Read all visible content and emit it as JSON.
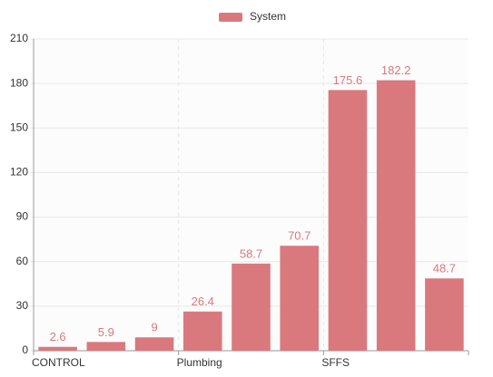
{
  "chart_data": {
    "type": "bar",
    "legend": "System",
    "categories": [
      "CONTROL",
      null,
      null,
      "Plumbing",
      null,
      null,
      "SFFS",
      null,
      null
    ],
    "series": [
      {
        "name": "System",
        "color": "#d9797e",
        "values": [
          2.6,
          5.9,
          9,
          26.4,
          58.7,
          70.7,
          175.6,
          182.2,
          48.7
        ]
      }
    ],
    "ylim": [
      0,
      210
    ],
    "yticks": [
      0,
      30,
      60,
      90,
      120,
      150,
      180,
      210
    ],
    "grid": true,
    "legend_position": "top"
  }
}
